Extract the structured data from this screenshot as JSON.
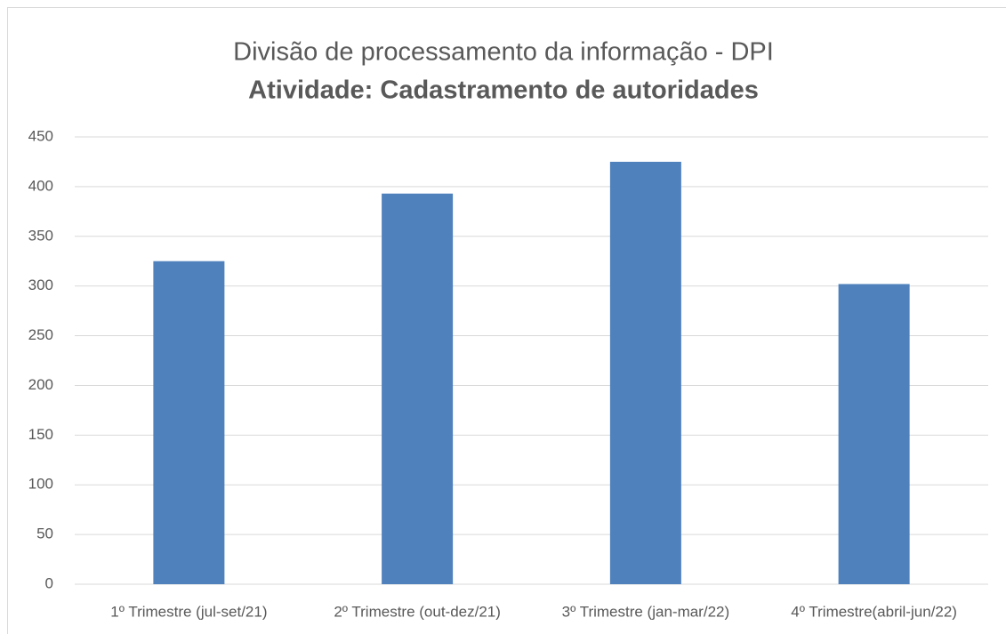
{
  "chart_data": {
    "type": "bar",
    "title": "Divisão de processamento da informação - DPI",
    "subtitle": "Atividade: Cadastramento de autoridades",
    "categories": [
      "1º Trimestre (jul-set/21)",
      "2º Trimestre (out-dez/21)",
      "3º Trimestre (jan-mar/22)",
      "4º Trimestre(abril-jun/22)"
    ],
    "values": [
      325,
      393,
      425,
      302
    ],
    "color": "#4f81bd",
    "ylim": [
      0,
      450
    ],
    "yticks": [
      0,
      50,
      100,
      150,
      200,
      250,
      300,
      350,
      400,
      450
    ],
    "grid": true
  }
}
